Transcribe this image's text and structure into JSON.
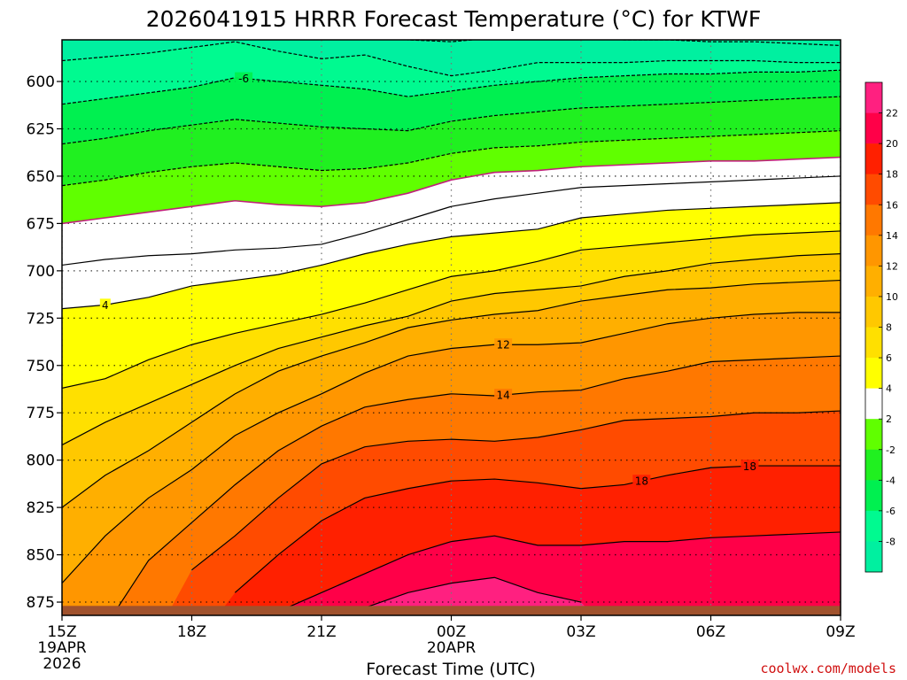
{
  "chart_data": {
    "type": "contour",
    "title": "2026041915 HRRR Forecast Temperature (°C) for KTWF",
    "xlabel": "Forecast Time (UTC)",
    "ylabel": "",
    "x_ticks": [
      {
        "hour": 0,
        "label": "15Z",
        "sub1": "19APR",
        "sub2": "2026"
      },
      {
        "hour": 3,
        "label": "18Z",
        "sub1": "",
        "sub2": ""
      },
      {
        "hour": 6,
        "label": "21Z",
        "sub1": "",
        "sub2": ""
      },
      {
        "hour": 9,
        "label": "00Z",
        "sub1": "20APR",
        "sub2": ""
      },
      {
        "hour": 12,
        "label": "03Z",
        "sub1": "",
        "sub2": ""
      },
      {
        "hour": 15,
        "label": "06Z",
        "sub1": "",
        "sub2": ""
      },
      {
        "hour": 18,
        "label": "09Z",
        "sub1": "",
        "sub2": ""
      }
    ],
    "y_ticks": [
      "600",
      "625",
      "650",
      "675",
      "700",
      "725",
      "750",
      "775",
      "800",
      "825",
      "850",
      "875"
    ],
    "y_tick_values": [
      600,
      625,
      650,
      675,
      700,
      725,
      750,
      775,
      800,
      825,
      850,
      875
    ],
    "xlim": [
      0,
      18
    ],
    "ylim": [
      578,
      882
    ],
    "y_inverted": true,
    "surface_pressure": 877,
    "surface_color": "#a0522d",
    "hours": [
      0,
      1,
      2,
      3,
      4,
      5,
      6,
      7,
      8,
      9,
      10,
      11,
      12,
      13,
      14,
      15,
      16,
      17,
      18
    ],
    "isotherm_levels": [
      -12,
      -10,
      -8,
      -6,
      -4,
      -2,
      0,
      2,
      4,
      6,
      8,
      10,
      12,
      14,
      16,
      18,
      20,
      22
    ],
    "isotherm_pressures": [
      [
        null,
        null,
        null,
        null,
        null,
        null,
        null,
        null,
        null,
        null,
        null,
        null,
        null,
        null,
        null,
        null,
        null,
        null,
        null
      ],
      [
        576,
        574,
        572,
        570,
        568,
        572,
        576,
        575,
        578,
        579,
        577,
        576,
        577,
        578,
        578,
        579,
        579,
        580,
        581
      ],
      [
        589,
        587,
        585,
        582,
        579,
        584,
        588,
        586,
        592,
        597,
        594,
        590,
        590,
        590,
        589,
        589,
        589,
        590,
        590
      ],
      [
        612,
        609,
        606,
        603,
        598,
        600,
        602,
        604,
        608,
        605,
        602,
        600,
        598,
        597,
        596,
        596,
        595,
        595,
        594
      ],
      [
        633,
        630,
        626,
        623,
        620,
        622,
        624,
        625,
        626,
        621,
        618,
        616,
        614,
        613,
        612,
        611,
        610,
        609,
        608
      ],
      [
        655,
        652,
        648,
        645,
        643,
        645,
        647,
        646,
        643,
        638,
        635,
        634,
        632,
        631,
        630,
        629,
        628,
        627,
        626
      ],
      [
        675,
        672,
        669,
        666,
        663,
        665,
        666,
        664,
        659,
        652,
        648,
        647,
        645,
        644,
        643,
        642,
        642,
        641,
        640
      ],
      [
        697,
        694,
        692,
        691,
        689,
        688,
        686,
        680,
        673,
        666,
        662,
        659,
        656,
        655,
        654,
        653,
        652,
        651,
        650
      ],
      [
        720,
        718,
        714,
        708,
        705,
        702,
        697,
        691,
        686,
        682,
        680,
        678,
        672,
        670,
        668,
        667,
        666,
        665,
        664
      ],
      [
        762,
        757,
        747,
        739,
        733,
        728,
        723,
        717,
        710,
        703,
        700,
        695,
        689,
        687,
        685,
        683,
        681,
        680,
        679
      ],
      [
        792,
        780,
        770,
        760,
        750,
        741,
        735,
        729,
        724,
        716,
        712,
        710,
        708,
        703,
        700,
        696,
        694,
        692,
        691
      ],
      [
        825,
        808,
        795,
        780,
        765,
        753,
        745,
        738,
        730,
        726,
        723,
        721,
        716,
        713,
        710,
        709,
        707,
        706,
        705
      ],
      [
        865,
        840,
        820,
        805,
        787,
        775,
        765,
        754,
        745,
        741,
        739,
        739,
        738,
        733,
        728,
        725,
        723,
        722,
        722
      ],
      [
        900,
        888,
        853,
        833,
        813,
        795,
        782,
        772,
        768,
        765,
        766,
        764,
        763,
        757,
        753,
        748,
        747,
        746,
        745
      ],
      [
        900,
        900,
        900,
        858,
        840,
        820,
        802,
        793,
        790,
        789,
        790,
        788,
        784,
        779,
        778,
        777,
        775,
        775,
        774
      ],
      [
        900,
        900,
        900,
        900,
        870,
        850,
        832,
        820,
        815,
        811,
        810,
        812,
        815,
        813,
        808,
        804,
        803,
        803,
        803
      ],
      [
        900,
        900,
        900,
        900,
        900,
        880,
        870,
        860,
        850,
        843,
        840,
        845,
        845,
        843,
        843,
        841,
        840,
        839,
        838
      ],
      [
        900,
        900,
        900,
        900,
        900,
        900,
        900,
        878,
        870,
        865,
        862,
        870,
        875,
        900,
        900,
        900,
        900,
        900,
        900
      ]
    ],
    "fill_colors": {
      "-12": "#00f0a0",
      "-10": "#00f0a0",
      "-8": "#00fa90",
      "-6": "#00f050",
      "-4": "#20f020",
      "-2": "#60ff00",
      "0": "#ffffff",
      "2": "#ffffff",
      "4": "#ffff00",
      "6": "#ffe000",
      "8": "#ffc800",
      "10": "#ffaf00",
      "12": "#ff9600",
      "14": "#ff7800",
      "16": "#ff4b00",
      "18": "#ff2000",
      "20": "#ff0048",
      "22": "#ff2080"
    },
    "line_color_zero": "#c0207a",
    "contour_labels": [
      {
        "label": "-6",
        "hour": 4.2,
        "level": -6
      },
      {
        "label": "4",
        "hour": 1.0,
        "level": 4
      },
      {
        "label": "12",
        "hour": 10.2,
        "level": 12
      },
      {
        "label": "14",
        "hour": 10.2,
        "level": 14
      },
      {
        "label": "18",
        "hour": 13.4,
        "level": 18
      },
      {
        "label": "18",
        "hour": 15.9,
        "level": 18
      }
    ],
    "colorbar": {
      "levels": [
        "22",
        "20",
        "18",
        "16",
        "14",
        "12",
        "10",
        "8",
        "6",
        "4",
        "2",
        "-2",
        "-4",
        "-6",
        "-8"
      ],
      "colors": [
        "#ff2080",
        "#ff0048",
        "#ff2000",
        "#ff4b00",
        "#ff7800",
        "#ff9600",
        "#ffaf00",
        "#ffc800",
        "#ffe000",
        "#ffff00",
        "#ffffff",
        "#60ff00",
        "#20f020",
        "#00f050",
        "#00fa90",
        "#00f0a0"
      ]
    },
    "grid": true
  },
  "credit": "coolwx.com/models"
}
